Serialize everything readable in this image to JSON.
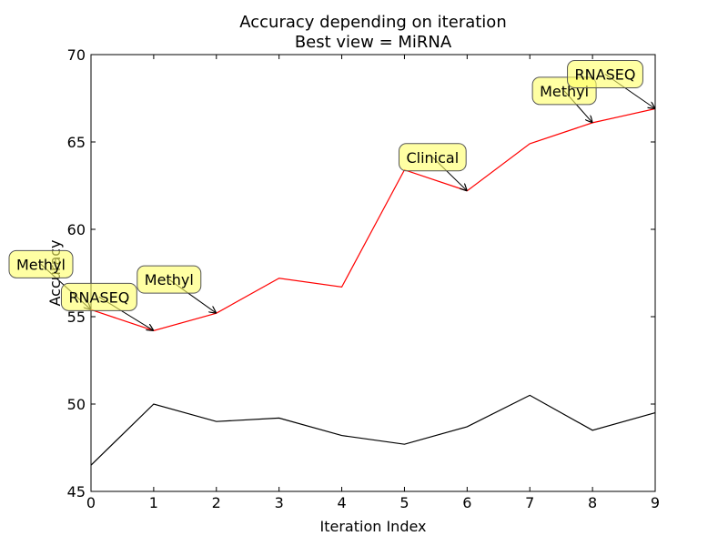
{
  "chart_data": {
    "type": "line",
    "title": "Accuracy depending on iteration",
    "subtitle": "Best view = MiRNA",
    "xlabel": "Iteration Index",
    "ylabel": "Accuracy",
    "xlim": [
      0,
      9
    ],
    "ylim": [
      45,
      70
    ],
    "xticks": [
      "0",
      "1",
      "2",
      "3",
      "4",
      "5",
      "6",
      "7",
      "8",
      "9"
    ],
    "yticks": [
      "45",
      "50",
      "55",
      "60",
      "65",
      "70"
    ],
    "grid": false,
    "x": [
      0,
      1,
      2,
      3,
      4,
      5,
      6,
      7,
      8,
      9
    ],
    "series": [
      {
        "color": "#ff0000",
        "values": [
          55.4,
          54.2,
          55.2,
          57.2,
          56.7,
          63.4,
          62.2,
          64.9,
          66.1,
          66.9
        ]
      },
      {
        "color": "#000000",
        "values": [
          46.5,
          50.0,
          49.0,
          49.2,
          48.2,
          47.7,
          48.7,
          50.5,
          48.5,
          49.5
        ]
      }
    ],
    "annotations": [
      {
        "text": "Methyl",
        "x": 0,
        "y": 55.4
      },
      {
        "text": "RNASEQ",
        "x": 1,
        "y": 54.2
      },
      {
        "text": "Methyl",
        "x": 2,
        "y": 55.2
      },
      {
        "text": "Clinical",
        "x": 6,
        "y": 62.2
      },
      {
        "text": "Methyl",
        "x": 8,
        "y": 66.1
      },
      {
        "text": "RNASEQ",
        "x": 9,
        "y": 66.9
      }
    ],
    "annotation_color": "#ffff66"
  }
}
